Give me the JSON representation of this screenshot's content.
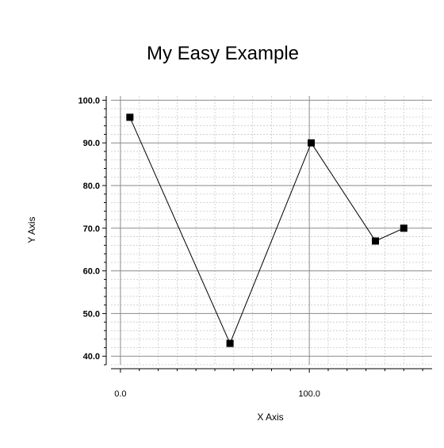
{
  "chart_data": {
    "type": "line",
    "title": "My Easy Example",
    "xlabel": "X Axis",
    "ylabel": "Y Axis",
    "xlim": [
      -5,
      165
    ],
    "ylim": [
      38,
      101
    ],
    "x_ticks": [
      0,
      100
    ],
    "x_tick_labels": [
      "0.0",
      "100.0"
    ],
    "y_ticks": [
      40,
      50,
      60,
      70,
      80,
      90,
      100
    ],
    "y_tick_labels": [
      "40.0",
      "50.0",
      "60.0",
      "70.0",
      "80.0",
      "90.0",
      "100.0"
    ],
    "grid": true,
    "marker": "square",
    "line_color": "#000000",
    "series": [
      {
        "x": [
          5,
          58,
          101,
          135,
          150
        ],
        "y": [
          96,
          43,
          90,
          67,
          70
        ]
      }
    ]
  }
}
